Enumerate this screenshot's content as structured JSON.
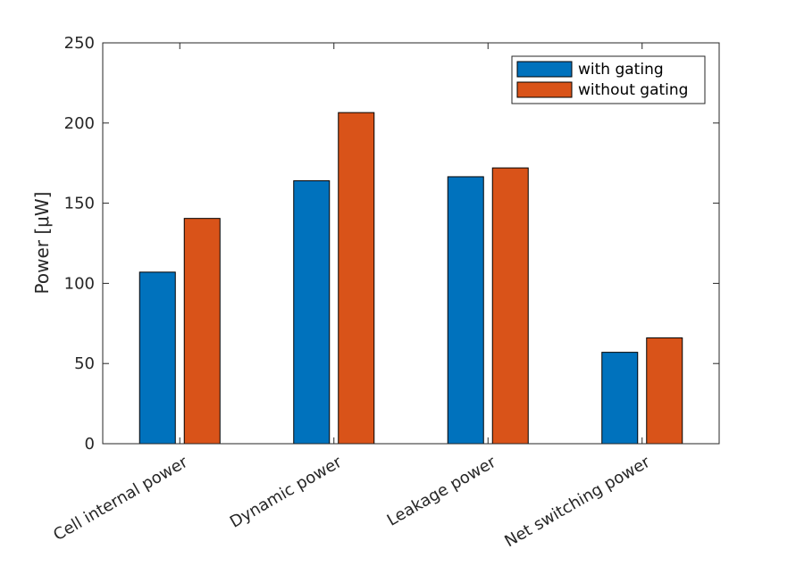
{
  "chart_data": {
    "type": "bar",
    "title": "",
    "xlabel": "",
    "ylabel": "Power [μW]",
    "ylim": [
      0,
      250
    ],
    "yticks": [
      0,
      50,
      100,
      150,
      200,
      250
    ],
    "categories": [
      "Cell internal power",
      "Dynamic power",
      "Leakage power",
      "Net switching power"
    ],
    "series": [
      {
        "name": "with gating",
        "color": "#0072BD",
        "values": [
          107,
          164,
          166.5,
          57
        ]
      },
      {
        "name": "without gating",
        "color": "#D95319",
        "values": [
          140.5,
          206.5,
          172,
          66
        ]
      }
    ],
    "legend_position": "top-right",
    "grid": false
  }
}
